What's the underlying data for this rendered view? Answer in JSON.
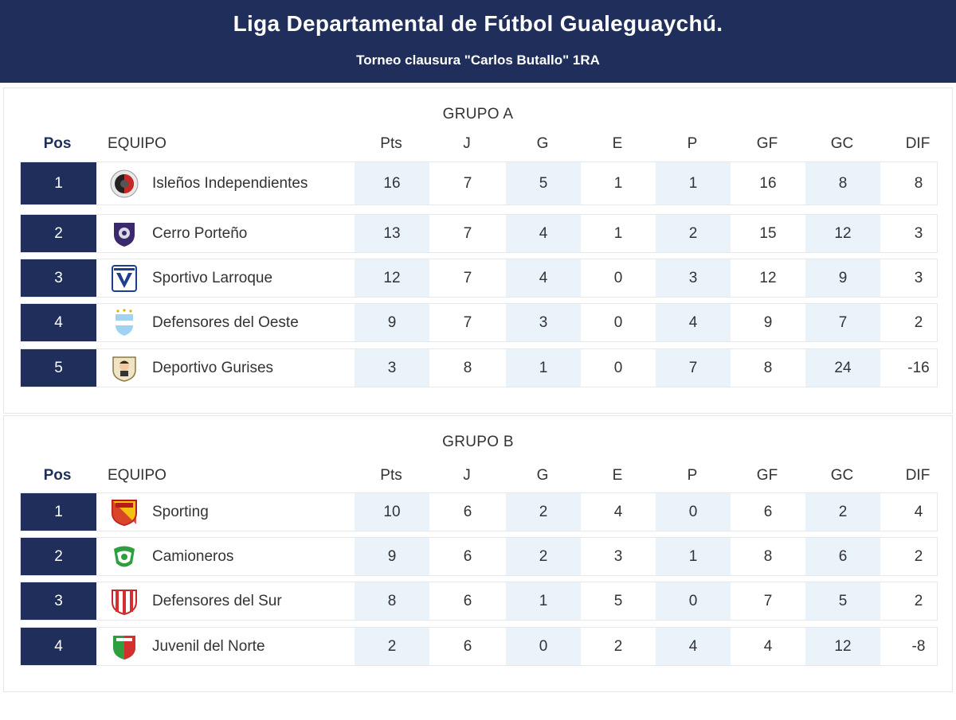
{
  "header": {
    "title": "Liga Departamental de Fútbol Gualeguaychú.",
    "subtitle": "Torneo clausura \"Carlos Butallo\" 1RA"
  },
  "columns": [
    "Pos",
    "EQUIPO",
    "Pts",
    "J",
    "G",
    "E",
    "P",
    "GF",
    "GC",
    "DIF"
  ],
  "groups": [
    {
      "name": "GRUPO A",
      "rows": [
        {
          "pos": "1",
          "team": "Isleños Independientes",
          "logo": "isleños-crest-icon",
          "pts": "16",
          "j": "7",
          "g": "5",
          "e": "1",
          "p": "1",
          "gf": "16",
          "gc": "8",
          "dif": "8"
        },
        {
          "pos": "2",
          "team": "Cerro Porteño",
          "logo": "cerro-porteno-crest-icon",
          "pts": "13",
          "j": "7",
          "g": "4",
          "e": "1",
          "p": "2",
          "gf": "15",
          "gc": "12",
          "dif": "3"
        },
        {
          "pos": "3",
          "team": "Sportivo Larroque",
          "logo": "sportivo-larroque-crest-icon",
          "pts": "12",
          "j": "7",
          "g": "4",
          "e": "0",
          "p": "3",
          "gf": "12",
          "gc": "9",
          "dif": "3"
        },
        {
          "pos": "4",
          "team": "Defensores del Oeste",
          "logo": "defensores-oeste-crest-icon",
          "pts": "9",
          "j": "7",
          "g": "3",
          "e": "0",
          "p": "4",
          "gf": "9",
          "gc": "7",
          "dif": "2"
        },
        {
          "pos": "5",
          "team": "Deportivo Gurises",
          "logo": "deportivo-gurises-crest-icon",
          "pts": "3",
          "j": "8",
          "g": "1",
          "e": "0",
          "p": "7",
          "gf": "8",
          "gc": "24",
          "dif": "-16"
        }
      ]
    },
    {
      "name": "GRUPO B",
      "rows": [
        {
          "pos": "1",
          "team": "Sporting",
          "logo": "sporting-crest-icon",
          "pts": "10",
          "j": "6",
          "g": "2",
          "e": "4",
          "p": "0",
          "gf": "6",
          "gc": "2",
          "dif": "4"
        },
        {
          "pos": "2",
          "team": "Camioneros",
          "logo": "camioneros-crest-icon",
          "pts": "9",
          "j": "6",
          "g": "2",
          "e": "3",
          "p": "1",
          "gf": "8",
          "gc": "6",
          "dif": "2"
        },
        {
          "pos": "3",
          "team": "Defensores del Sur",
          "logo": "defensores-sur-crest-icon",
          "pts": "8",
          "j": "6",
          "g": "1",
          "e": "5",
          "p": "0",
          "gf": "7",
          "gc": "5",
          "dif": "2"
        },
        {
          "pos": "4",
          "team": "Juvenil del Norte",
          "logo": "juvenil-norte-crest-icon",
          "pts": "2",
          "j": "6",
          "g": "0",
          "e": "2",
          "p": "4",
          "gf": "4",
          "gc": "12",
          "dif": "-8"
        }
      ]
    }
  ],
  "colors": {
    "navy": "#1f2e5a",
    "shade": "#eaf2fa"
  }
}
